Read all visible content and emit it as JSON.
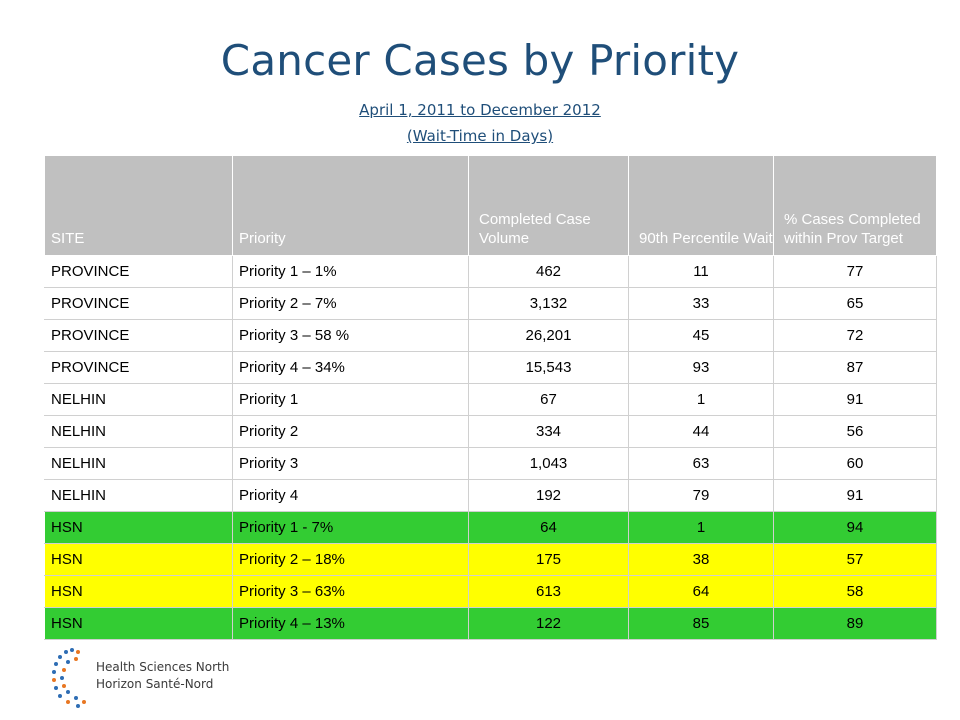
{
  "title": "Cancer Cases by Priority",
  "subtitle_line1": "April 1, 2011 to December 2012",
  "subtitle_line2": "(Wait-Time in Days)",
  "table": {
    "headers": [
      "SITE",
      "Priority",
      "Completed Case Volume",
      "90th Percentile Wait",
      "% Cases Completed within Prov Target"
    ],
    "rows": [
      {
        "site": "PROVINCE",
        "priority": "Priority 1 – 1%",
        "volume": "462",
        "wait": "11",
        "pct": "77",
        "highlight": "none"
      },
      {
        "site": "PROVINCE",
        "priority": "Priority 2 – 7%",
        "volume": "3,132",
        "wait": "33",
        "pct": "65",
        "highlight": "none"
      },
      {
        "site": "PROVINCE",
        "priority": "Priority 3 – 58 %",
        "volume": "26,201",
        "wait": "45",
        "pct": "72",
        "highlight": "none"
      },
      {
        "site": "PROVINCE",
        "priority": "Priority 4 – 34%",
        "volume": "15,543",
        "wait": "93",
        "pct": "87",
        "highlight": "none"
      },
      {
        "site": "NELHIN",
        "priority": "Priority 1",
        "volume": "67",
        "wait": "1",
        "pct": "91",
        "highlight": "none"
      },
      {
        "site": "NELHIN",
        "priority": "Priority 2",
        "volume": "334",
        "wait": "44",
        "pct": "56",
        "highlight": "none"
      },
      {
        "site": "NELHIN",
        "priority": "Priority 3",
        "volume": "1,043",
        "wait": "63",
        "pct": "60",
        "highlight": "none"
      },
      {
        "site": "NELHIN",
        "priority": "Priority 4",
        "volume": "192",
        "wait": "79",
        "pct": "91",
        "highlight": "none"
      },
      {
        "site": "HSN",
        "priority": "Priority 1 - 7%",
        "volume": "64",
        "wait": "1",
        "pct": "94",
        "highlight": "green"
      },
      {
        "site": "HSN",
        "priority": "Priority 2 – 18%",
        "volume": "175",
        "wait": "38",
        "pct": "57",
        "highlight": "yellow"
      },
      {
        "site": "HSN",
        "priority": "Priority 3 – 63%",
        "volume": "613",
        "wait": "64",
        "pct": "58",
        "highlight": "yellow"
      },
      {
        "site": "HSN",
        "priority": "Priority 4 – 13%",
        "volume": "122",
        "wait": "85",
        "pct": "89",
        "highlight": "green"
      }
    ]
  },
  "colors": {
    "title": "#1f4e79",
    "header_bg": "#c0c0c0",
    "highlight_green": "#33cc33",
    "highlight_yellow": "#ffff00"
  },
  "logo": {
    "icon": "hsn-dot-logo-icon",
    "name_en": "Health Sciences North",
    "name_fr": "Horizon Santé-Nord"
  }
}
